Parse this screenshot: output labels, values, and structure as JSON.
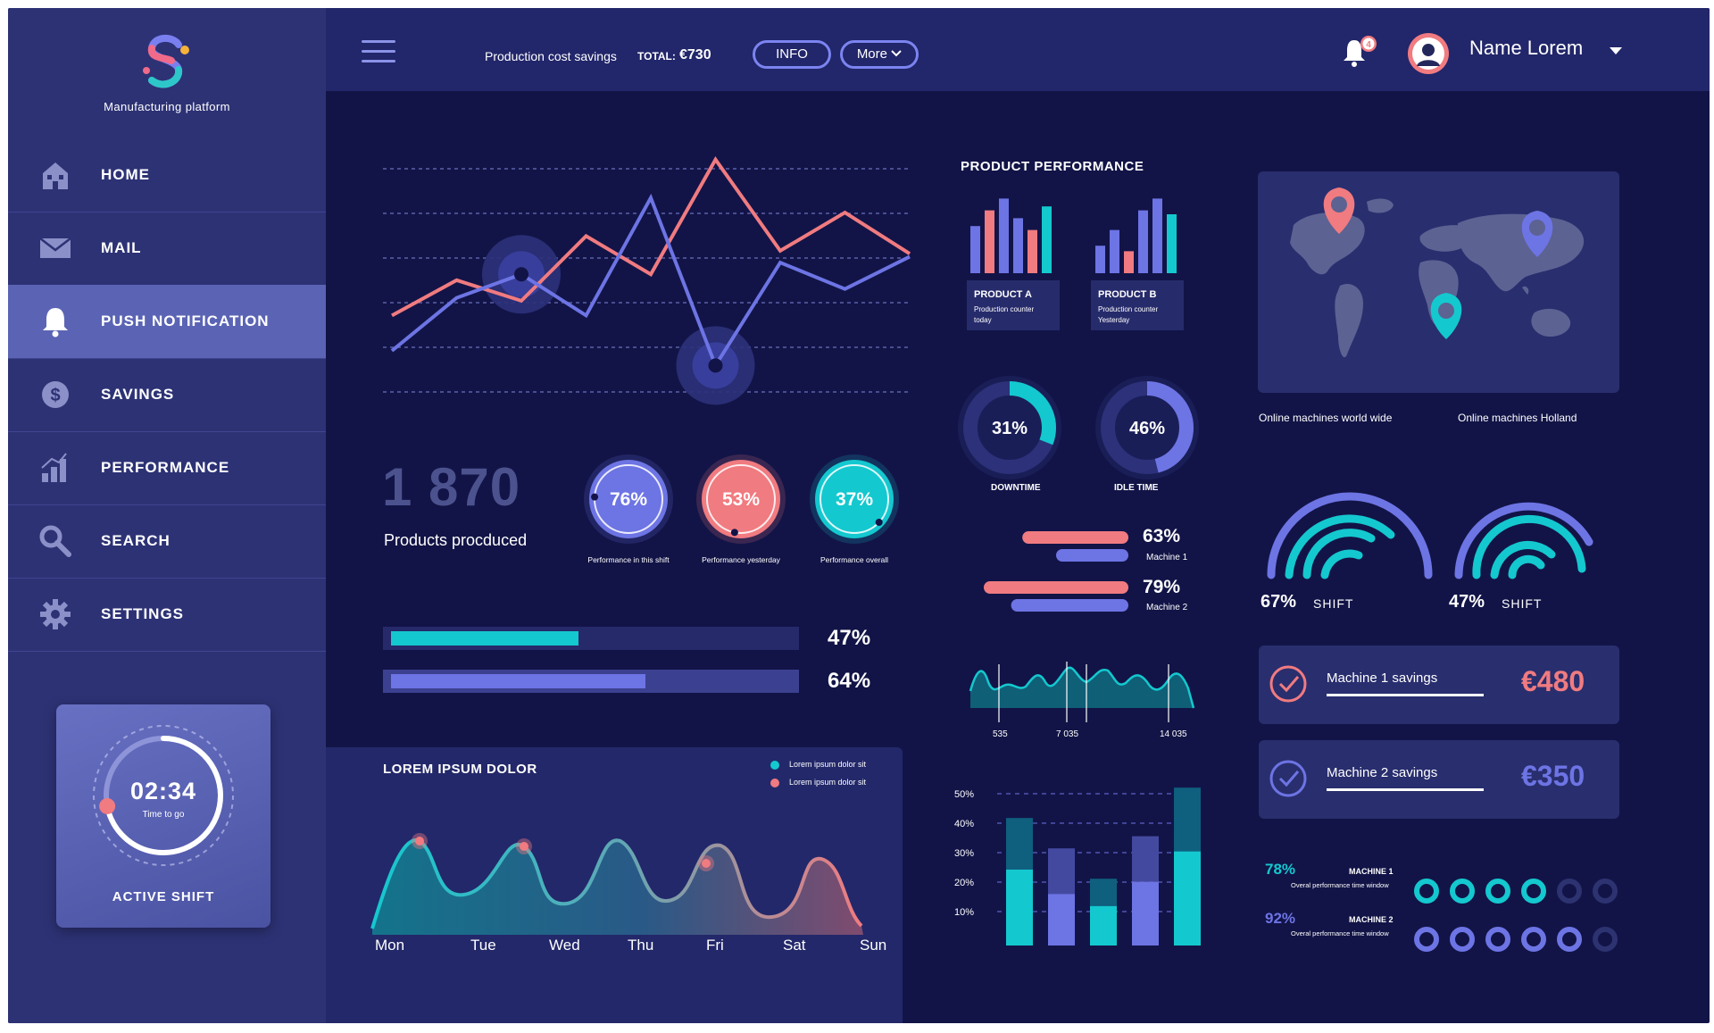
{
  "app": {
    "logo_text": "Manufacturing platform"
  },
  "sidebar": {
    "items": [
      {
        "label": "HOME",
        "icon": "home-icon"
      },
      {
        "label": "MAIL",
        "icon": "mail-icon"
      },
      {
        "label": "PUSH NOTIFICATION",
        "icon": "bell-icon",
        "active": true
      },
      {
        "label": "SAVINGS",
        "icon": "dollar-icon"
      },
      {
        "label": "PERFORMANCE",
        "icon": "bar-chart-icon"
      },
      {
        "label": "SEARCH",
        "icon": "search-icon"
      },
      {
        "label": "SETTINGS",
        "icon": "gear-icon"
      }
    ],
    "shift": {
      "time": "02:34",
      "sub": "Time to go",
      "label": "ACTIVE SHIFT",
      "progress": 0.72
    }
  },
  "topbar": {
    "savings_label": "Production cost savings",
    "total_label": "TOTAL:",
    "total_value": "€730",
    "info_button": "INFO",
    "more_button": "More",
    "notification_count": "4",
    "user_name": "Name Lorem"
  },
  "colors": {
    "teal": "#14c8cf",
    "coral": "#f07b80",
    "blue": "#6d74e4",
    "bg": "#121447"
  },
  "line_chart": {
    "type": "line",
    "series": [
      {
        "color": "coral",
        "values": [
          1.6,
          2.8,
          2.1,
          4.3,
          3.0,
          6.9,
          3.8,
          5.1,
          3.7
        ]
      },
      {
        "color": "blue",
        "values": [
          0.4,
          2.2,
          3.0,
          1.6,
          5.6,
          -0.1,
          3.4,
          2.5,
          3.6
        ]
      }
    ],
    "markers": [
      {
        "series": 1,
        "index": 2
      },
      {
        "series": 1,
        "index": 5
      }
    ]
  },
  "products": {
    "count": "1 870",
    "label": "Products procduced"
  },
  "perf_rings": [
    {
      "value": "76%",
      "label": "Performance in this shift",
      "color": "blue"
    },
    {
      "value": "53%",
      "label": "Performance yesterday",
      "color": "coral"
    },
    {
      "value": "37%",
      "label": "Performance overall",
      "color": "teal"
    }
  ],
  "progress_bars": [
    {
      "value": 0.47,
      "label": "47%",
      "color": "teal"
    },
    {
      "value": 0.64,
      "label": "64%",
      "color": "blue"
    }
  ],
  "area_chart": {
    "title": "LOREM IPSUM DOLOR",
    "legend": [
      "Lorem ipsum dolor sit",
      "Lorem ipsum dolor sit"
    ],
    "days": [
      "Mon",
      "Tue",
      "Wed",
      "Thu",
      "Fri",
      "Sat",
      "Sun"
    ]
  },
  "product_performance": {
    "title": "PRODUCT PERFORMANCE",
    "products": [
      {
        "name": "PRODUCT A",
        "sub1": "Production counter",
        "sub2": "today",
        "bars": [
          0.6,
          0.8,
          0.95,
          0.7,
          0.55,
          0.85
        ]
      },
      {
        "name": "PRODUCT B",
        "sub1": "Production counter",
        "sub2": "Yesterday",
        "bars": [
          0.35,
          0.55,
          0.28,
          0.8,
          0.95,
          0.75
        ]
      }
    ]
  },
  "donuts": [
    {
      "value": "31%",
      "label": "DOWNTIME",
      "fraction": 0.31
    },
    {
      "value": "46%",
      "label": "IDLE TIME",
      "fraction": 0.46
    }
  ],
  "machines": [
    {
      "value": "63%",
      "label": "Machine 1",
      "bar1": 0.66,
      "bar2": 0.45
    },
    {
      "value": "79%",
      "label": "Machine 2",
      "bar1": 0.9,
      "bar2": 0.73
    }
  ],
  "wave_chart": {
    "labels": [
      "535",
      "7 035",
      "14 035"
    ]
  },
  "stacked_bar": {
    "type": "bar",
    "yticks": [
      "50%",
      "40%",
      "30%",
      "20%",
      "10%"
    ],
    "bars": [
      {
        "total": 0.42,
        "light": 0.25,
        "color": "teal"
      },
      {
        "total": 0.32,
        "light": 0.17,
        "color": "blue"
      },
      {
        "total": 0.22,
        "light": 0.13,
        "color": "teal"
      },
      {
        "total": 0.36,
        "light": 0.21,
        "color": "blue"
      },
      {
        "total": 0.52,
        "light": 0.31,
        "color": "teal"
      }
    ]
  },
  "map": {
    "caption_left": "Online machines world wide",
    "caption_right": "Online machines Holland"
  },
  "shift_gauges": [
    {
      "value": "67%",
      "label": "SHIFT"
    },
    {
      "value": "47%",
      "label": "SHIFT"
    }
  ],
  "savings_cards": [
    {
      "label": "Machine 1 savings",
      "value": "€480",
      "color": "coral"
    },
    {
      "label": "Machine 2 savings",
      "value": "€350",
      "color": "blue"
    }
  ],
  "dot_rows": [
    {
      "percent": "78%",
      "name": "MACHINE 1",
      "sub": "Overal performance time window",
      "filled": 4,
      "total": 6,
      "color": "teal"
    },
    {
      "percent": "92%",
      "name": "MACHINE 2",
      "sub": "Overal performance time window",
      "filled": 5,
      "total": 6,
      "color": "blue"
    }
  ]
}
